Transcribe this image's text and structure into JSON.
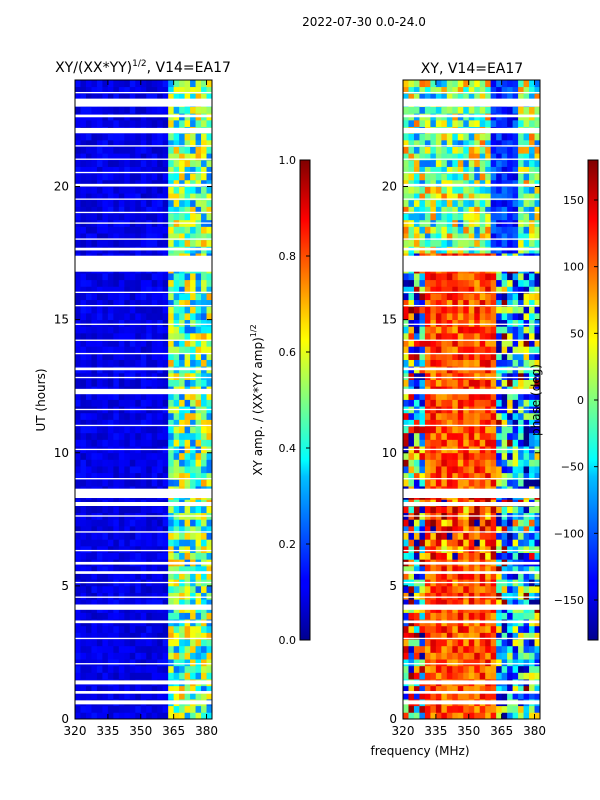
{
  "chart_data": [
    {
      "type": "heatmap",
      "suptitle": "2022-07-30 0.0-24.0",
      "title": "XY/(XX*YY)$^{1/2}$, V14=EA17",
      "title_display": "XY/(XX*YY)",
      "title_sup": "1/2",
      "title_suffix": ", V14=EA17",
      "xlabel": "",
      "ylabel": "UT (hours)",
      "x_ticks": [
        "320",
        "335",
        "350",
        "365",
        "380"
      ],
      "x_tick_values": [
        320,
        335,
        350,
        365,
        380
      ],
      "y_ticks": [
        "0",
        "5",
        "10",
        "15",
        "20"
      ],
      "y_tick_values": [
        0,
        5,
        10,
        15,
        20
      ],
      "xlim": [
        320,
        382.5
      ],
      "ylim": [
        0,
        24
      ],
      "colormap": "jet",
      "colorbar": {
        "label": "XY amp. / (XX*YY amp)",
        "label_sup": "1/2",
        "range": [
          0.0,
          1.0
        ],
        "ticks": [
          "0.0",
          "0.2",
          "0.4",
          "0.6",
          "0.8",
          "1.0"
        ],
        "tick_values": [
          0.0,
          0.2,
          0.4,
          0.6,
          0.8,
          1.0
        ]
      },
      "description": "Low normalized amplitude (~0.05-0.15) below 362 MHz; elevated (~0.3-0.8) between 362 and 382 MHz; white gaps where data are flagged"
    },
    {
      "type": "heatmap",
      "title": "XY, V14=EA17",
      "xlabel": "frequency (MHz)",
      "ylabel": "",
      "x_ticks": [
        "320",
        "335",
        "350",
        "365",
        "380"
      ],
      "x_tick_values": [
        320,
        335,
        350,
        365,
        380
      ],
      "y_ticks": [
        "0",
        "5",
        "10",
        "15",
        "20"
      ],
      "y_tick_values": [
        0,
        5,
        10,
        15,
        20
      ],
      "xlim": [
        320,
        382.5
      ],
      "ylim": [
        0,
        24
      ],
      "colormap": "jet",
      "colorbar": {
        "label": "phase (deg)",
        "range": [
          -180,
          180
        ],
        "ticks": [
          "−150",
          "−100",
          "−50",
          "0",
          "50",
          "100",
          "150"
        ],
        "tick_values": [
          -150,
          -100,
          -50,
          0,
          50,
          100,
          150
        ]
      },
      "description": "XY phase vs frequency and UT; mostly 100-180 deg (red) around 340-360 MHz, noisy green/yellow band after 17 h, blue near band edges"
    }
  ],
  "colors": {
    "jet_low": "#00008f",
    "jet_high": "#800000",
    "flag_gap": "#ffffff"
  }
}
